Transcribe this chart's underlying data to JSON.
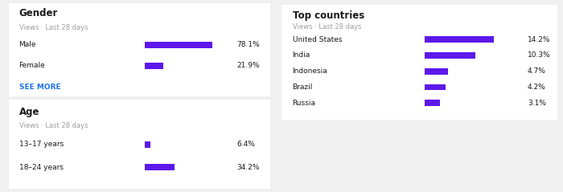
{
  "background_color": "#f0f0f0",
  "card_color": "#ffffff",
  "bar_color": "#5e17eb",
  "text_dark": "#1a1a1a",
  "text_gray": "#9e9e9e",
  "text_blue": "#1a73e8",
  "gender_title": "Gender",
  "gender_subtitle": "Views · Last 28 days",
  "gender_labels": [
    "Male",
    "Female"
  ],
  "gender_values": [
    78.1,
    21.9
  ],
  "gender_max": 100,
  "gender_see_more": "SEE MORE",
  "age_title": "Age",
  "age_subtitle": "Views · Last 28 days",
  "age_labels": [
    "13–17 years",
    "18–24 years"
  ],
  "age_values": [
    6.4,
    34.2
  ],
  "age_max": 100,
  "country_title": "Top countries",
  "country_subtitle": "Views · Last 28 days",
  "country_labels": [
    "United States",
    "India",
    "Indonesia",
    "Brazil",
    "Russia"
  ],
  "country_values": [
    14.2,
    10.3,
    4.7,
    4.2,
    3.1
  ],
  "country_max": 20,
  "fig_width": 7.0,
  "fig_height": 2.39,
  "dpi": 100
}
